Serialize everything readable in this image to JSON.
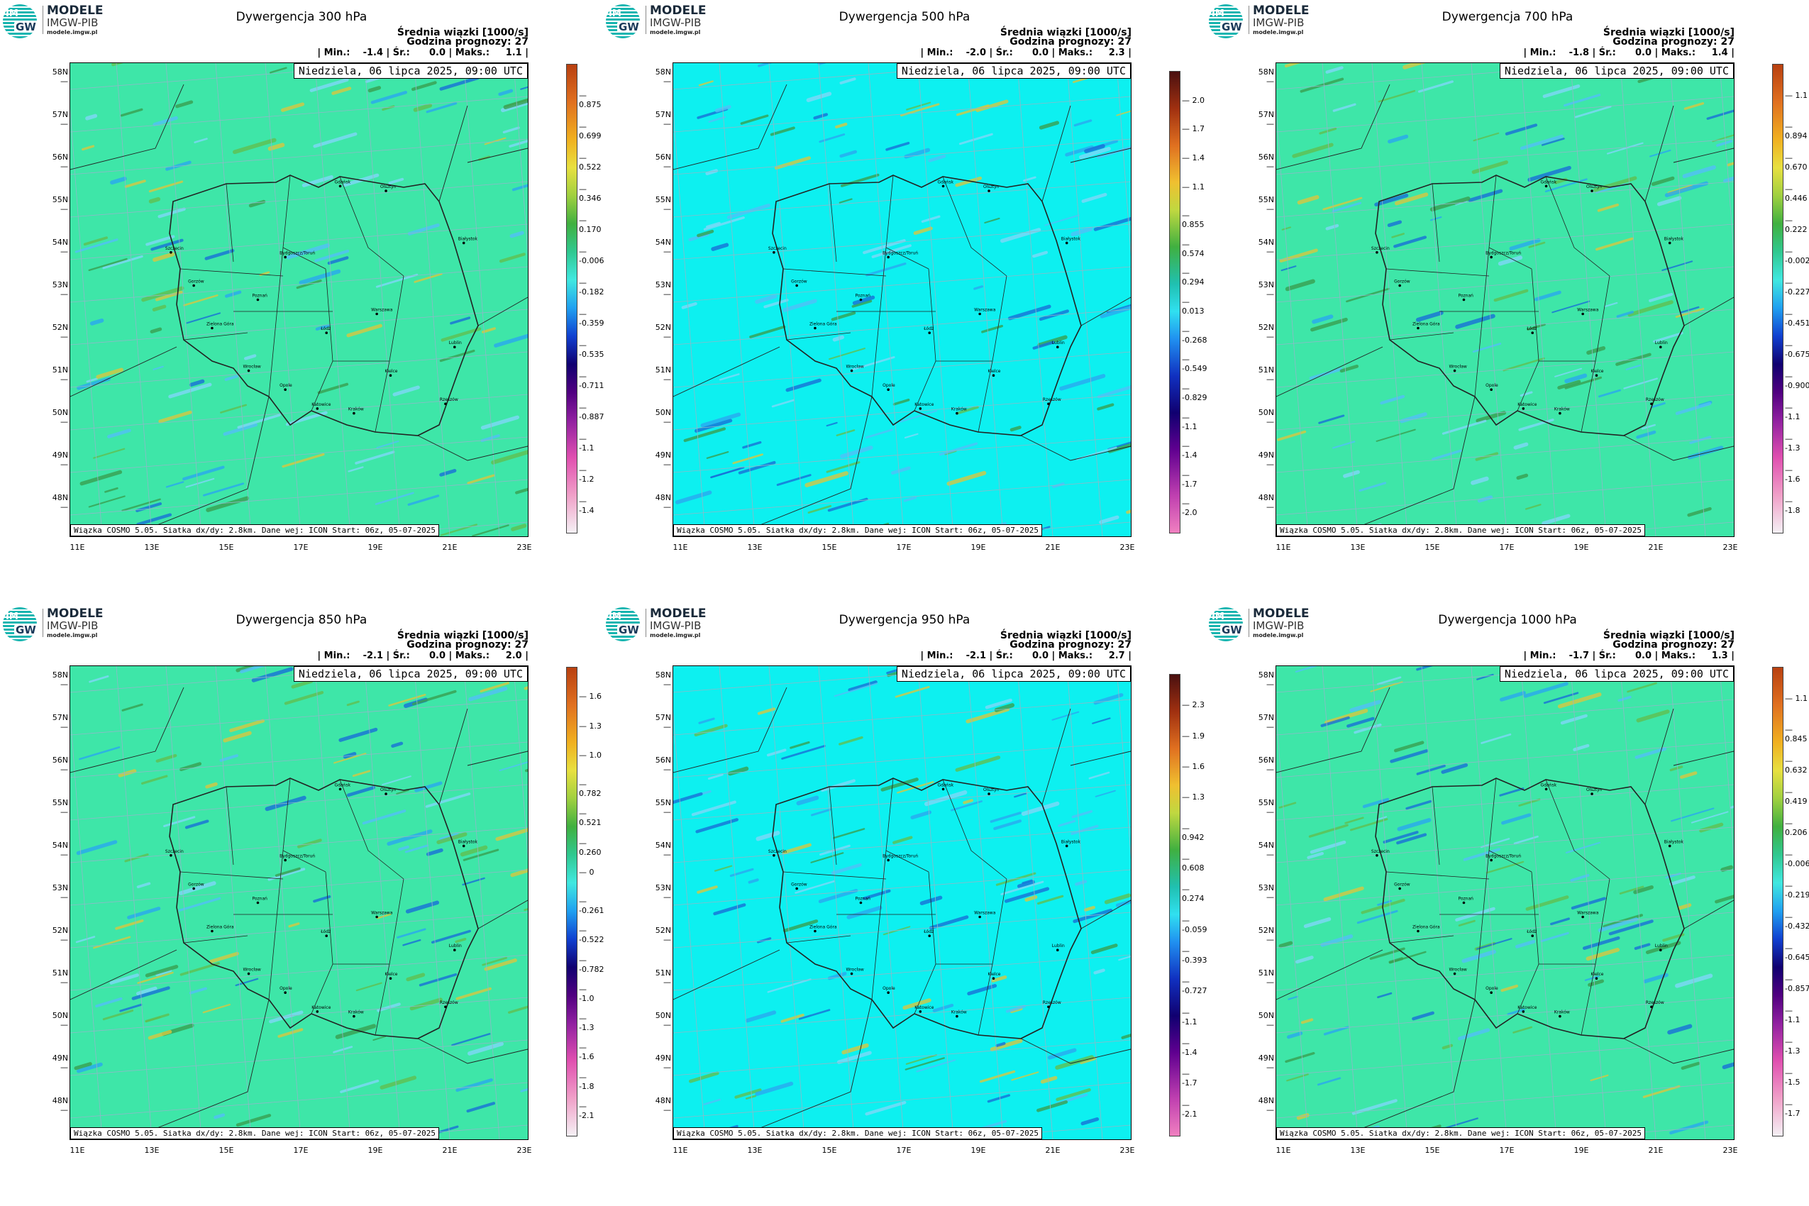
{
  "brand": {
    "t1": "MODELE",
    "t2": "IMGW-PIB",
    "t3": "modele.imgw.pl",
    "im": "IM",
    "gw": "GW"
  },
  "common": {
    "subtitle1": "Średnia wiązki [1000/s]",
    "subtitle2": "Godzina prognozy: 27",
    "date": "Niedziela, 06 lipca 2025, 09:00 UTC",
    "footer": "Wiązka COSMO 5.05. Siatka dx/dy: 2.8km. Dane wej: ICON Start: 06z, 05-07-2025",
    "lat_labels": [
      "58N",
      "57N",
      "56N",
      "55N",
      "54N",
      "53N",
      "52N",
      "51N",
      "50N",
      "49N",
      "48N"
    ],
    "lon_labels": [
      "11E",
      "13E",
      "15E",
      "17E",
      "19E",
      "21E",
      "23E"
    ]
  },
  "colors": {
    "field_a": "#3ee6a8",
    "field_b": "#0df0f0",
    "gridline": "#8fb8c8",
    "border": "#222222"
  },
  "panels": [
    {
      "title": "Dywergencja 300 hPa",
      "stats": "| Min.:    -1.4 | Śr.:      0.0 | Maks.:     1.1 |",
      "base": "#3ee6a8",
      "cb_labels": [
        "0.875",
        "0.699",
        "0.522",
        "0.346",
        "0.170",
        "-0.006",
        "-0.182",
        "-0.359",
        "-0.535",
        "-0.711",
        "-0.887",
        "-1.1",
        "-1.2",
        "-1.4"
      ]
    },
    {
      "title": "Dywergencja 500 hPa",
      "stats": "| Min.:    -2.0 | Śr.:      0.0 | Maks.:     2.3 |",
      "base": "#0df0f0",
      "cb_labels": [
        "2.0",
        "1.7",
        "1.4",
        "1.1",
        "0.855",
        "0.574",
        "0.294",
        "0.013",
        "-0.268",
        "-0.549",
        "-0.829",
        "-1.1",
        "-1.4",
        "-1.7",
        "-2.0"
      ]
    },
    {
      "title": "Dywergencja 700 hPa",
      "stats": "| Min.:    -1.8 | Śr.:      0.0 | Maks.:     1.4 |",
      "base": "#3ee6a8",
      "cb_labels": [
        "1.1",
        "0.894",
        "0.670",
        "0.446",
        "0.222",
        "-0.002",
        "-0.227",
        "-0.451",
        "-0.675",
        "-0.900",
        "-1.1",
        "-1.3",
        "-1.6",
        "-1.8"
      ]
    },
    {
      "title": "Dywergencja 850 hPa",
      "stats": "| Min.:    -2.1 | Śr.:      0.0 | Maks.:     2.0 |",
      "base": "#3ee6a8",
      "cb_labels": [
        "1.6",
        "1.3",
        "1.0",
        "0.782",
        "0.521",
        "0.260",
        "0",
        "-0.261",
        "-0.522",
        "-0.782",
        "-1.0",
        "-1.3",
        "-1.6",
        "-1.8",
        "-2.1"
      ]
    },
    {
      "title": "Dywergencja 950 hPa",
      "stats": "| Min.:    -2.1 | Śr.:      0.0 | Maks.:     2.7 |",
      "base": "#0df0f0",
      "cb_labels": [
        "2.3",
        "1.9",
        "1.6",
        "1.3",
        "0.942",
        "0.608",
        "0.274",
        "-0.059",
        "-0.393",
        "-0.727",
        "-1.1",
        "-1.4",
        "-1.7",
        "-2.1"
      ]
    },
    {
      "title": "Dywergencja 1000 hPa",
      "stats": "| Min.:    -1.7 | Śr.:      0.0 | Maks.:     1.3 |",
      "base": "#3ee6a8",
      "cb_labels": [
        "1.1",
        "0.845",
        "0.632",
        "0.419",
        "0.206",
        "-0.006",
        "-0.219",
        "-0.432",
        "-0.645",
        "-0.857",
        "-1.1",
        "-1.3",
        "-1.5",
        "-1.7"
      ]
    }
  ],
  "cities": [
    "Gdańsk",
    "Olsztyn",
    "Szczecin",
    "Bydgoszcz/Toruń",
    "Białystok",
    "Gorzów",
    "Poznań",
    "Warszawa",
    "Zielona Góra",
    "Łódź",
    "Lublin",
    "Wrocław",
    "Opole",
    "Kielce",
    "Katowice",
    "Kraków",
    "Rzeszów"
  ]
}
